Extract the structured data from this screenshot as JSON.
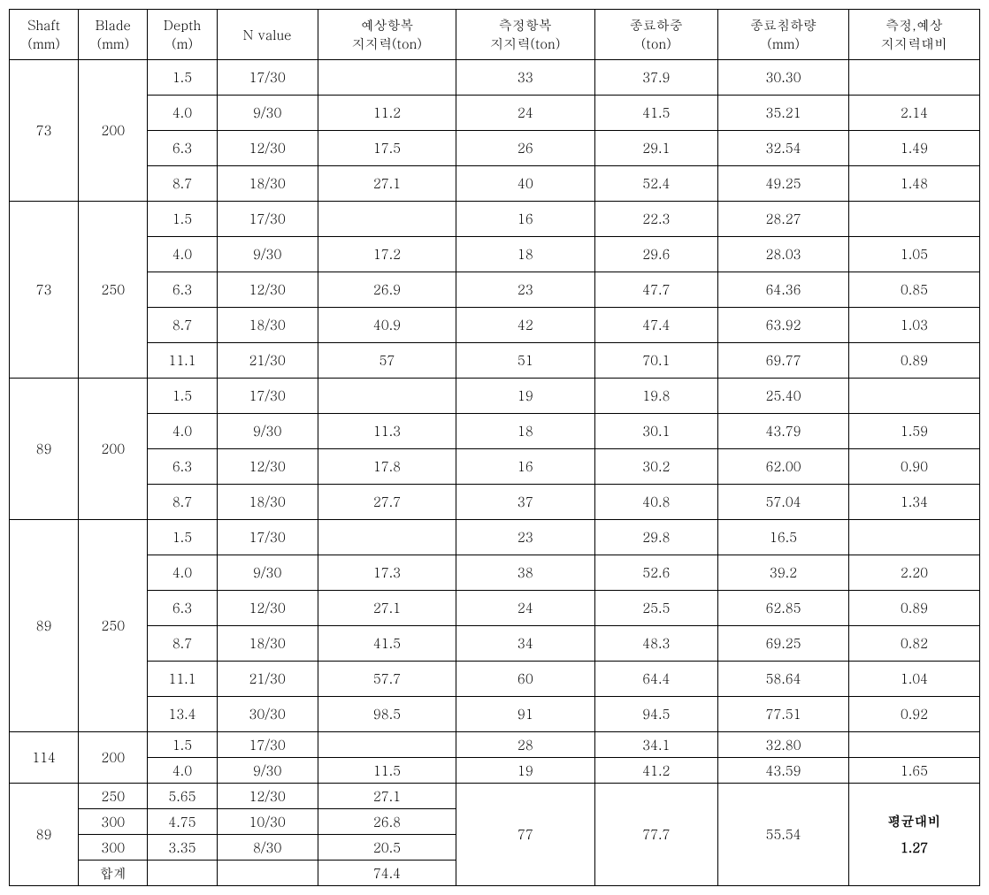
{
  "colors": {
    "border": "#000000",
    "background": "#ffffff",
    "text": "#000000"
  },
  "typography": {
    "font_family": "Batang, serif",
    "font_size_pt": 11
  },
  "headers": {
    "h0a": "Shaft",
    "h0b": "(mm)",
    "h1a": "Blade",
    "h1b": "(mm)",
    "h2a": "Depth",
    "h2b": "(m)",
    "h3": "N value",
    "h4a": "예상항복",
    "h4b": "지지력(ton)",
    "h5a": "측정항복",
    "h5b": "지지력(ton)",
    "h6a": "종료하중",
    "h6b": "(ton)",
    "h7a": "종료침하량",
    "h7b": "(mm)",
    "h8a": "측정,예상",
    "h8b": "지지력대비"
  },
  "groups": [
    {
      "shaft": "73",
      "blade": "200",
      "rows": [
        {
          "depth": "1.5",
          "n": "17/30",
          "pred": "",
          "meas": "33",
          "load": "37.9",
          "settle": "30.30",
          "ratio": ""
        },
        {
          "depth": "4.0",
          "n": "9/30",
          "pred": "11.2",
          "meas": "24",
          "load": "41.5",
          "settle": "35.21",
          "ratio": "2.14"
        },
        {
          "depth": "6.3",
          "n": "12/30",
          "pred": "17.5",
          "meas": "26",
          "load": "29.1",
          "settle": "32.54",
          "ratio": "1.49"
        },
        {
          "depth": "8.7",
          "n": "18/30",
          "pred": "27.1",
          "meas": "40",
          "load": "52.4",
          "settle": "49.25",
          "ratio": "1.48"
        }
      ]
    },
    {
      "shaft": "73",
      "blade": "250",
      "rows": [
        {
          "depth": "1.5",
          "n": "17/30",
          "pred": "",
          "meas": "16",
          "load": "22.3",
          "settle": "28.27",
          "ratio": ""
        },
        {
          "depth": "4.0",
          "n": "9/30",
          "pred": "17.2",
          "meas": "18",
          "load": "29.6",
          "settle": "28.03",
          "ratio": "1.05"
        },
        {
          "depth": "6.3",
          "n": "12/30",
          "pred": "26.9",
          "meas": "23",
          "load": "47.7",
          "settle": "64.36",
          "ratio": "0.85"
        },
        {
          "depth": "8.7",
          "n": "18/30",
          "pred": "40.9",
          "meas": "42",
          "load": "47.4",
          "settle": "63.92",
          "ratio": "1.03"
        },
        {
          "depth": "11.1",
          "n": "21/30",
          "pred": "57",
          "meas": "51",
          "load": "70.1",
          "settle": "69.77",
          "ratio": "0.89"
        }
      ]
    },
    {
      "shaft": "89",
      "blade": "200",
      "rows": [
        {
          "depth": "1.5",
          "n": "17/30",
          "pred": "",
          "meas": "19",
          "load": "19.8",
          "settle": "25.40",
          "ratio": ""
        },
        {
          "depth": "4.0",
          "n": "9/30",
          "pred": "11.3",
          "meas": "18",
          "load": "30.1",
          "settle": "43.79",
          "ratio": "1.59"
        },
        {
          "depth": "6.3",
          "n": "12/30",
          "pred": "17.8",
          "meas": "16",
          "load": "30.2",
          "settle": "62.00",
          "ratio": "0.90"
        },
        {
          "depth": "8.7",
          "n": "18/30",
          "pred": "27.7",
          "meas": "37",
          "load": "40.8",
          "settle": "57.04",
          "ratio": "1.34"
        }
      ]
    },
    {
      "shaft": "89",
      "blade": "250",
      "rows": [
        {
          "depth": "1.5",
          "n": "17/30",
          "pred": "",
          "meas": "23",
          "load": "29.8",
          "settle": "16.5",
          "ratio": ""
        },
        {
          "depth": "4.0",
          "n": "9/30",
          "pred": "17.3",
          "meas": "38",
          "load": "52.6",
          "settle": "39.2",
          "ratio": "2.20"
        },
        {
          "depth": "6.3",
          "n": "12/30",
          "pred": "27.1",
          "meas": "24",
          "load": "25.5",
          "settle": "62.85",
          "ratio": "0.89"
        },
        {
          "depth": "8.7",
          "n": "18/30",
          "pred": "41.5",
          "meas": "34",
          "load": "48.3",
          "settle": "69.25",
          "ratio": "0.82"
        },
        {
          "depth": "11.1",
          "n": "21/30",
          "pred": "57.7",
          "meas": "60",
          "load": "64.4",
          "settle": "58.64",
          "ratio": "1.04"
        },
        {
          "depth": "13.4",
          "n": "30/30",
          "pred": "98.5",
          "meas": "91",
          "load": "94.5",
          "settle": "77.51",
          "ratio": "0.92"
        }
      ]
    },
    {
      "shaft": "114",
      "blade": "200",
      "tight": true,
      "rows": [
        {
          "depth": "1.5",
          "n": "17/30",
          "pred": "",
          "meas": "28",
          "load": "34.1",
          "settle": "32.80",
          "ratio": ""
        },
        {
          "depth": "4.0",
          "n": "9/30",
          "pred": "11.5",
          "meas": "19",
          "load": "41.2",
          "settle": "43.59",
          "ratio": "1.65"
        }
      ]
    }
  ],
  "bottom": {
    "shaft": "89",
    "rows": [
      {
        "blade": "250",
        "depth": "5.65",
        "n": "12/30",
        "pred": "27.1"
      },
      {
        "blade": "300",
        "depth": "4.75",
        "n": "10/30",
        "pred": "26.8"
      },
      {
        "blade": "300",
        "depth": "3.35",
        "n": "8/30",
        "pred": "20.5"
      },
      {
        "blade": "합계",
        "depth": "",
        "n": "",
        "pred": "74.4"
      }
    ],
    "meas": "77",
    "load": "77.7",
    "settle": "55.54",
    "ratio_line1": "평균대비",
    "ratio_line2": "1.27"
  }
}
